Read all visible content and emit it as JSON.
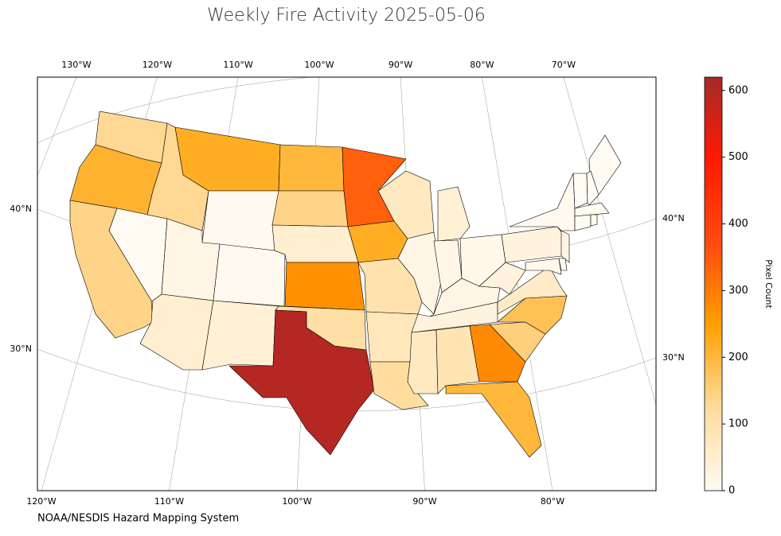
{
  "chart_data": {
    "type": "choropleth",
    "title": "Weekly Fire Activity 2025-05-06",
    "footer": "NOAA/NESDIS Hazard Mapping System",
    "colorbar_label": "Pixel Count",
    "values": [
      130,
      210,
      140,
      0,
      130,
      220,
      5,
      20,
      50,
      40,
      5,
      200,
      140,
      50,
      270,
      110,
      600,
      340,
      220,
      100,
      80,
      120,
      70,
      20,
      70,
      40,
      15,
      10,
      20,
      30,
      90,
      280,
      200,
      150,
      180,
      60,
      30,
      30,
      5,
      0,
      0,
      0,
      0,
      0,
      0,
      20,
      0,
      10
    ],
    "colormap": [
      "#fffaf2",
      "#ffdc9c",
      "#ffa000",
      "#ff4a10",
      "#ff1a00",
      "#a52a2a"
    ],
    "clim": [
      0,
      620
    ],
    "cticks": [
      0,
      100,
      200,
      300,
      400,
      500,
      600
    ],
    "lon_top": [
      {
        "value": -130,
        "label": "130°W"
      },
      {
        "value": -120,
        "label": "120°W"
      },
      {
        "value": -110,
        "label": "110°W"
      },
      {
        "value": -100,
        "label": "100°W"
      },
      {
        "value": -90,
        "label": "90°W"
      },
      {
        "value": -80,
        "label": "80°W"
      },
      {
        "value": -70,
        "label": "70°W"
      }
    ],
    "lon_bottom": [
      {
        "value": -120,
        "label": "120°W"
      },
      {
        "value": -110,
        "label": "110°W"
      },
      {
        "value": -100,
        "label": "100°W"
      },
      {
        "value": -90,
        "label": "90°W"
      },
      {
        "value": -80,
        "label": "80°W"
      }
    ],
    "lat_left": [
      {
        "value": 40,
        "label": "40°N"
      },
      {
        "value": 30,
        "label": "30°N"
      }
    ],
    "lat_right": [
      {
        "value": 40,
        "label": "40°N"
      },
      {
        "value": 30,
        "label": "30°N"
      }
    ]
  }
}
